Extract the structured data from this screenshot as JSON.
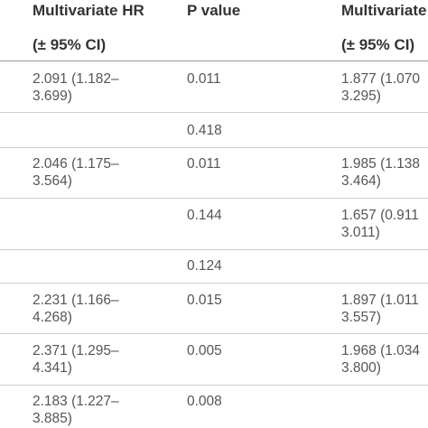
{
  "header": {
    "col1_line1": "Multivariate HR",
    "col1_line2": "(± 95% CI)",
    "col2_line1": "P value",
    "col3_line1": "Multivariate",
    "col3_line2": "(± 95% CI)"
  },
  "rows": [
    {
      "hr1": "2.091 (1.182–",
      "hr2": "3.699)",
      "p": "0.011",
      "mhr1": "1.877 (1.070",
      "mhr2": "3.295)"
    },
    {
      "hr1": "",
      "hr2": "",
      "p": "0.418",
      "mhr1": "",
      "mhr2": ""
    },
    {
      "hr1": "2.046 (1.175–",
      "hr2": "3.564)",
      "p": "0.011",
      "mhr1": "1.985 (1.138",
      "mhr2": "3.464)"
    },
    {
      "hr1": "",
      "hr2": "",
      "p": "0.144",
      "mhr1": "1.657 (0.911",
      "mhr2": "3.011)"
    },
    {
      "hr1": "",
      "hr2": "",
      "p": "0.124",
      "mhr1": "",
      "mhr2": ""
    },
    {
      "hr1": "2.231 (1.166–",
      "hr2": "4.268)",
      "p": "0.015",
      "mhr1": "1.897 (1.011",
      "mhr2": "3.557)"
    },
    {
      "hr1": "2.371 (1.295–",
      "hr2": "4.341)",
      "p": "0.005",
      "mhr1": "1.968 (1.034",
      "mhr2": "3.800)"
    },
    {
      "hr1": "2.183 (1.227–",
      "hr2": "3.885)",
      "p": "0.008",
      "mhr1": "",
      "mhr2": ""
    }
  ]
}
